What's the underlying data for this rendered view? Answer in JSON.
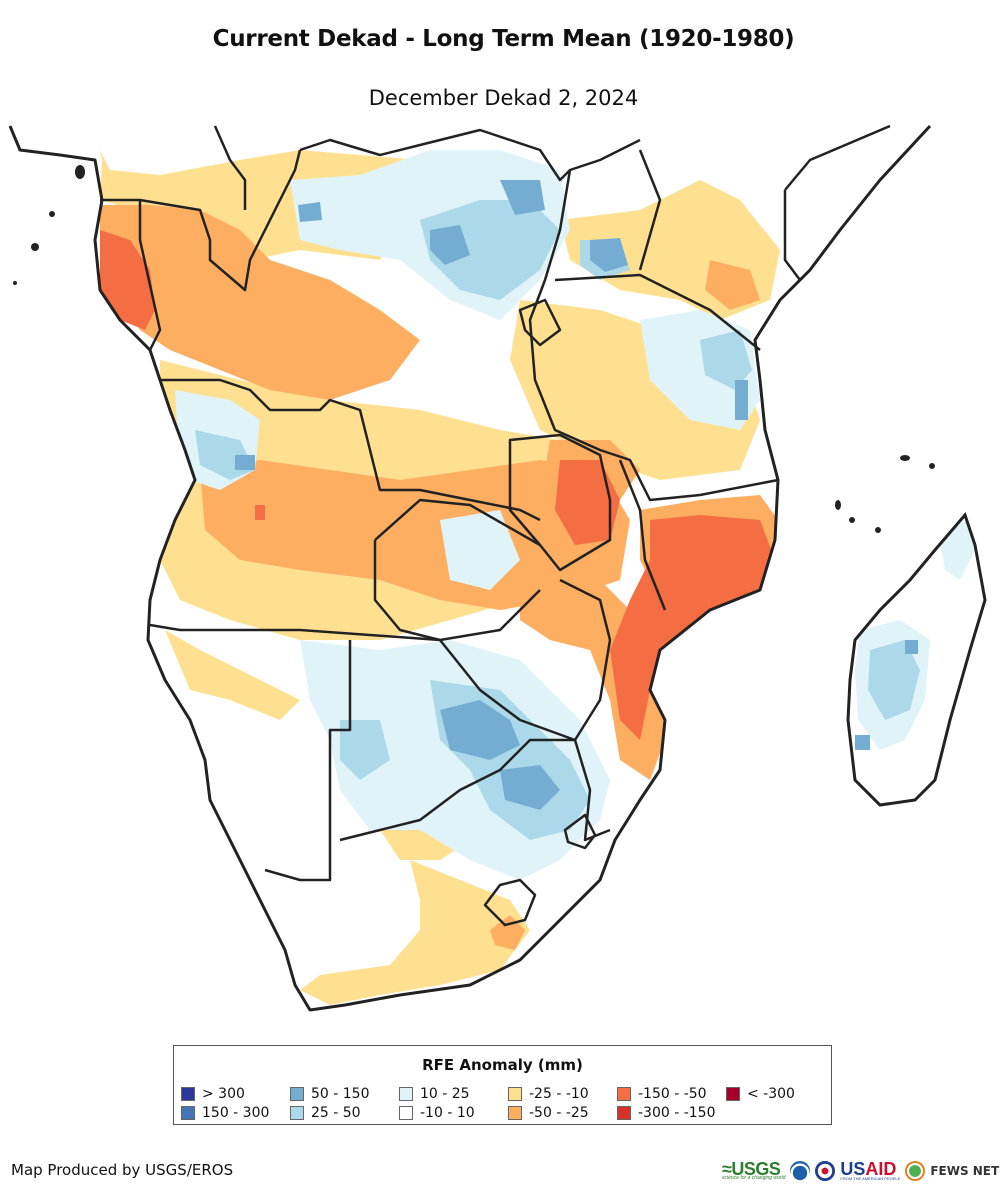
{
  "header": {
    "title": "Current Dekad - Long Term Mean (1920-1980)",
    "subtitle": "December Dekad 2, 2024"
  },
  "legend": {
    "title": "RFE Anomaly (mm)",
    "items": [
      {
        "label": "> 300",
        "color": "#2b3a98"
      },
      {
        "label": "150 - 300",
        "color": "#4575b4"
      },
      {
        "label": "50 - 150",
        "color": "#74add1"
      },
      {
        "label": "25 - 50",
        "color": "#abd9e9"
      },
      {
        "label": "10 - 25",
        "color": "#e0f3f8"
      },
      {
        "label": "-10 - 10",
        "color": "#ffffff"
      },
      {
        "label": "-25 - -10",
        "color": "#fee090"
      },
      {
        "label": "-50 - -25",
        "color": "#fdae61"
      },
      {
        "label": "-150 - -50",
        "color": "#f46d43"
      },
      {
        "label": "-300 - -150",
        "color": "#d73027"
      },
      {
        "label": "< -300",
        "color": "#a50026"
      }
    ]
  },
  "footer": {
    "credit": "Map Produced by USGS/EROS",
    "logos": {
      "usgs": "USGS",
      "usgs_tagline": "science for a changing world",
      "usaid_a": "US",
      "usaid_b": "AID",
      "usaid_tagline": "FROM THE AMERICAN PEOPLE",
      "fews": "FEWS NET"
    }
  },
  "colors": {
    "border": "#222222",
    "background": "#ffffff"
  }
}
